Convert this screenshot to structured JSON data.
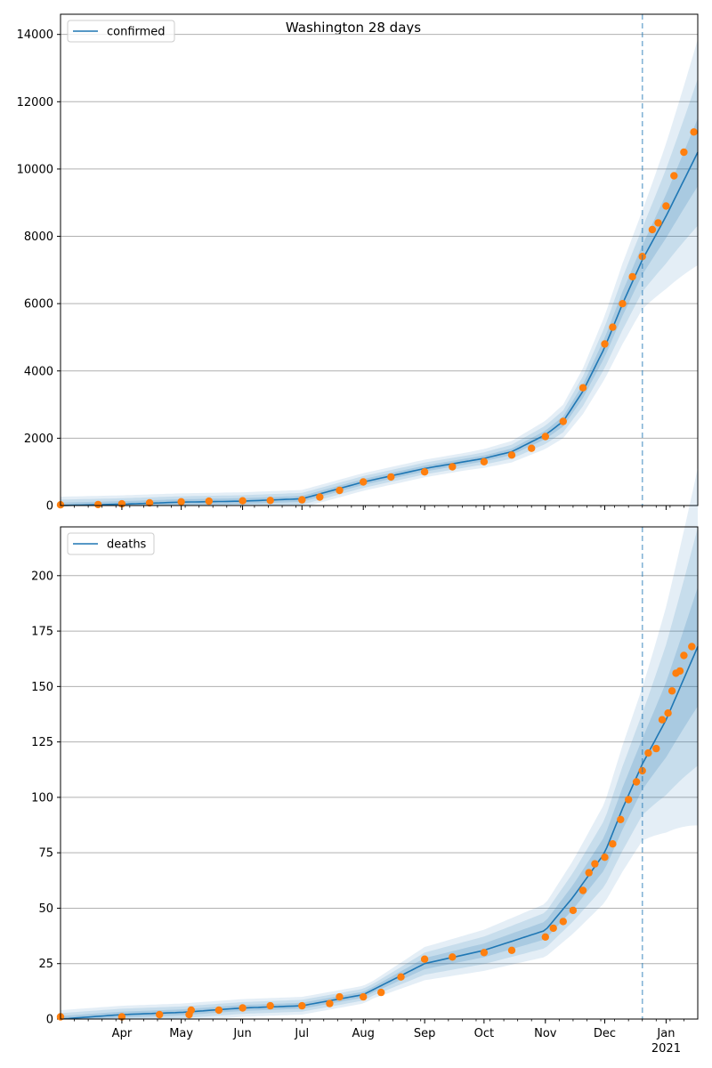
{
  "title": "Washington 28 days",
  "colors": {
    "model": "#1f77b4",
    "observed": "#ff7f0e",
    "band": "#1f77b4",
    "grid": "#b0b0b0"
  },
  "chart_data": [
    {
      "type": "line",
      "legend": "confirmed",
      "legend_placement": "top-left",
      "grid": "y",
      "x_range": [
        "2020-03-01",
        "2021-01-17"
      ],
      "ylim": [
        0,
        14600
      ],
      "yticks": [
        "0",
        "2000",
        "4000",
        "6000",
        "8000",
        "10000",
        "12000",
        "14000"
      ],
      "forecast_start": "2020-12-20",
      "model": [
        [
          "2020-03-01",
          0
        ],
        [
          "2020-04-01",
          40
        ],
        [
          "2020-05-01",
          100
        ],
        [
          "2020-06-01",
          130
        ],
        [
          "2020-07-01",
          200
        ],
        [
          "2020-08-01",
          700
        ],
        [
          "2020-09-01",
          1100
        ],
        [
          "2020-10-01",
          1400
        ],
        [
          "2020-10-15",
          1600
        ],
        [
          "2020-11-01",
          2100
        ],
        [
          "2020-11-10",
          2500
        ],
        [
          "2020-11-20",
          3400
        ],
        [
          "2020-12-01",
          4700
        ],
        [
          "2020-12-10",
          6000
        ],
        [
          "2020-12-20",
          7300
        ],
        [
          "2021-01-01",
          8600
        ],
        [
          "2021-01-17",
          10500
        ]
      ],
      "band_halfwidth_fraction": [
        0.06,
        0.13,
        0.2
      ],
      "observed": [
        [
          "2020-03-01",
          20
        ],
        [
          "2020-03-20",
          30
        ],
        [
          "2020-04-01",
          50
        ],
        [
          "2020-04-15",
          80
        ],
        [
          "2020-05-01",
          110
        ],
        [
          "2020-05-15",
          130
        ],
        [
          "2020-06-01",
          140
        ],
        [
          "2020-06-15",
          150
        ],
        [
          "2020-07-01",
          170
        ],
        [
          "2020-07-10",
          250
        ],
        [
          "2020-07-20",
          450
        ],
        [
          "2020-08-01",
          700
        ],
        [
          "2020-08-15",
          850
        ],
        [
          "2020-09-01",
          1000
        ],
        [
          "2020-09-15",
          1150
        ],
        [
          "2020-10-01",
          1300
        ],
        [
          "2020-10-15",
          1500
        ],
        [
          "2020-10-25",
          1700
        ],
        [
          "2020-11-01",
          2050
        ],
        [
          "2020-11-10",
          2500
        ],
        [
          "2020-11-20",
          3500
        ],
        [
          "2020-12-01",
          4800
        ],
        [
          "2020-12-05",
          5300
        ],
        [
          "2020-12-10",
          6000
        ],
        [
          "2020-12-15",
          6800
        ],
        [
          "2020-12-20",
          7400
        ],
        [
          "2020-12-25",
          8200
        ],
        [
          "2020-12-28",
          8400
        ],
        [
          "2021-01-01",
          8900
        ],
        [
          "2021-01-05",
          9800
        ],
        [
          "2021-01-10",
          10500
        ],
        [
          "2021-01-15",
          11100
        ]
      ]
    },
    {
      "type": "line",
      "legend": "deaths",
      "legend_placement": "top-left",
      "grid": "y",
      "x_range": [
        "2020-03-01",
        "2021-01-17"
      ],
      "ylim": [
        0,
        222
      ],
      "yticks": [
        "0",
        "25",
        "50",
        "75",
        "100",
        "125",
        "150",
        "175",
        "200"
      ],
      "xticks": [
        "Apr",
        "May",
        "Jun",
        "Jul",
        "Aug",
        "Sep",
        "Oct",
        "Nov",
        "Dec",
        "Jan"
      ],
      "xtick_year": "2021",
      "forecast_start": "2020-12-20",
      "model": [
        [
          "2020-03-01",
          0
        ],
        [
          "2020-04-01",
          2
        ],
        [
          "2020-05-01",
          3
        ],
        [
          "2020-06-01",
          5
        ],
        [
          "2020-07-01",
          6
        ],
        [
          "2020-08-01",
          11
        ],
        [
          "2020-09-01",
          25
        ],
        [
          "2020-10-01",
          31
        ],
        [
          "2020-11-01",
          40
        ],
        [
          "2020-11-15",
          55
        ],
        [
          "2020-12-01",
          75
        ],
        [
          "2020-12-10",
          95
        ],
        [
          "2020-12-20",
          115
        ],
        [
          "2021-01-01",
          135
        ],
        [
          "2021-01-17",
          168
        ]
      ],
      "band_halfwidth_fraction": [
        0.1,
        0.2,
        0.3
      ],
      "observed": [
        [
          "2020-03-01",
          1
        ],
        [
          "2020-04-01",
          1
        ],
        [
          "2020-04-20",
          2
        ],
        [
          "2020-05-05",
          2
        ],
        [
          "2020-05-06",
          4
        ],
        [
          "2020-05-20",
          4
        ],
        [
          "2020-06-01",
          5
        ],
        [
          "2020-06-15",
          6
        ],
        [
          "2020-07-01",
          6
        ],
        [
          "2020-07-15",
          7
        ],
        [
          "2020-07-20",
          10
        ],
        [
          "2020-08-01",
          10
        ],
        [
          "2020-08-10",
          12
        ],
        [
          "2020-08-20",
          19
        ],
        [
          "2020-09-01",
          27
        ],
        [
          "2020-09-15",
          28
        ],
        [
          "2020-10-01",
          30
        ],
        [
          "2020-10-15",
          31
        ],
        [
          "2020-11-01",
          37
        ],
        [
          "2020-11-05",
          41
        ],
        [
          "2020-11-10",
          44
        ],
        [
          "2020-11-15",
          49
        ],
        [
          "2020-11-20",
          58
        ],
        [
          "2020-11-23",
          66
        ],
        [
          "2020-11-26",
          70
        ],
        [
          "2020-12-01",
          73
        ],
        [
          "2020-12-05",
          79
        ],
        [
          "2020-12-09",
          90
        ],
        [
          "2020-12-13",
          99
        ],
        [
          "2020-12-17",
          107
        ],
        [
          "2020-12-20",
          112
        ],
        [
          "2020-12-23",
          120
        ],
        [
          "2020-12-27",
          122
        ],
        [
          "2020-12-30",
          135
        ],
        [
          "2021-01-02",
          138
        ],
        [
          "2021-01-04",
          148
        ],
        [
          "2021-01-06",
          156
        ],
        [
          "2021-01-08",
          157
        ],
        [
          "2021-01-10",
          164
        ],
        [
          "2021-01-14",
          168
        ]
      ]
    }
  ]
}
